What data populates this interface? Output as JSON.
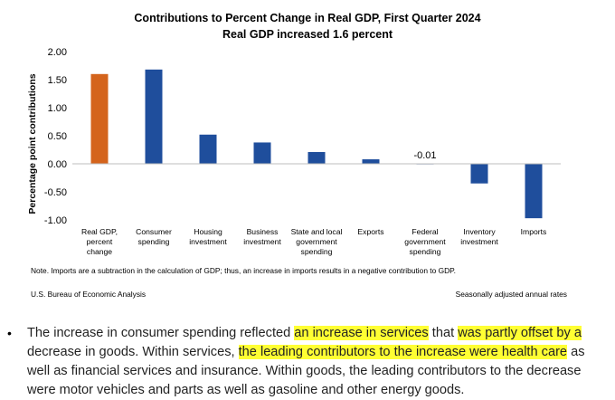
{
  "chart_data": {
    "type": "bar",
    "title": "Contributions to Percent Change in Real GDP, First Quarter 2024",
    "subtitle": "Real GDP increased 1.6 percent",
    "ylabel": "Percentage point contributions",
    "ylim": [
      -1.0,
      2.0
    ],
    "yticks": [
      "2.00",
      "1.50",
      "1.00",
      "0.50",
      "0.00",
      "-0.50",
      "-1.00"
    ],
    "ytick_values": [
      2.0,
      1.5,
      1.0,
      0.5,
      0.0,
      -0.5,
      -1.0
    ],
    "grid": false,
    "categories": [
      [
        "Real GDP,",
        "percent",
        "change"
      ],
      [
        "Consumer",
        "spending"
      ],
      [
        "Housing",
        "investment"
      ],
      [
        "Business",
        "investment"
      ],
      [
        "State and local",
        "government",
        "spending"
      ],
      [
        "Exports"
      ],
      [
        "Federal",
        "government",
        "spending"
      ],
      [
        "Inventory",
        "investment"
      ],
      [
        "Imports"
      ]
    ],
    "values": [
      1.6,
      1.68,
      0.52,
      0.38,
      0.21,
      0.08,
      -0.01,
      -0.35,
      -0.97
    ],
    "colors": [
      "#d4641c",
      "#1f4e9c",
      "#1f4e9c",
      "#1f4e9c",
      "#1f4e9c",
      "#1f4e9c",
      "#1f4e9c",
      "#1f4e9c",
      "#1f4e9c"
    ],
    "data_labels": [
      {
        "index": 6,
        "text": "-0.01"
      }
    ],
    "note": "Note. Imports are a subtraction in the calculation of GDP; thus, an increase in imports results in a negative contribution to GDP.",
    "source": "U.S. Bureau of Economic Analysis",
    "rates": "Seasonally adjusted annual rates"
  },
  "bullet": {
    "symbol": "•",
    "segments": [
      {
        "text": "The increase in consumer spending reflected ",
        "hl": false
      },
      {
        "text": "an increase in services",
        "hl": true
      },
      {
        "text": " that ",
        "hl": false
      },
      {
        "text": "was partly offset by a",
        "hl": true
      },
      {
        "text": " decrease in goods. Within services, ",
        "hl": false
      },
      {
        "text": "the leading contributors to the increase were health care",
        "hl": true
      },
      {
        "text": " as well as financial services and insurance. Within goods, the leading contributors to the decrease were motor vehicles and parts as well as gasoline and other energy goods.",
        "hl": false
      }
    ]
  }
}
